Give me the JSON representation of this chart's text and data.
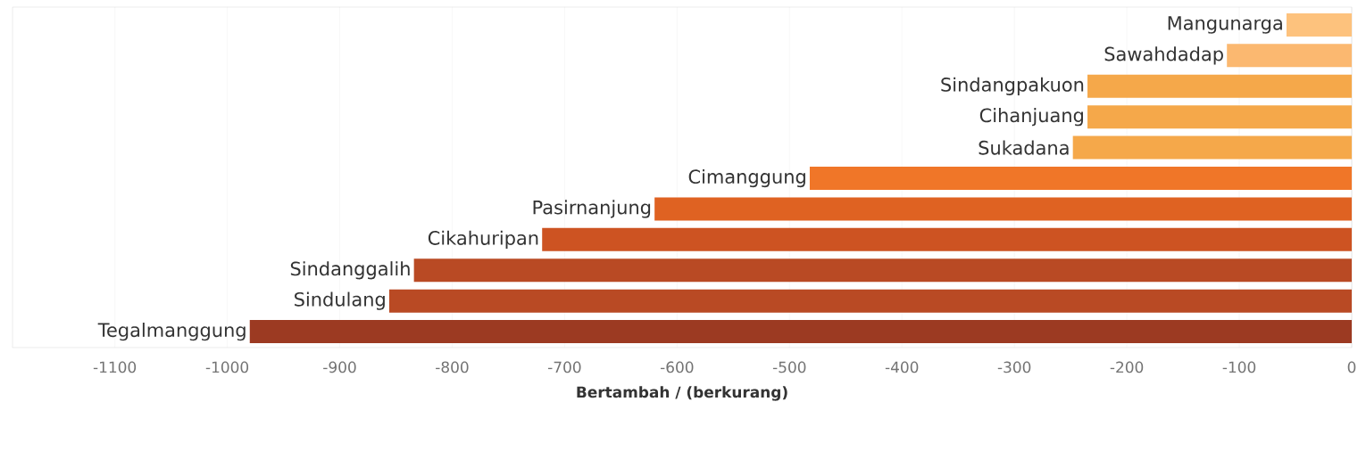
{
  "chart_data": {
    "type": "bar",
    "orientation": "horizontal",
    "xlabel": "Bertambah / (berkurang)",
    "categories": [
      "Mangunarga",
      "Sawahdadap",
      "Sindangpakuon",
      "Cihanjuang",
      "Sukadana",
      "Cimanggung",
      "Pasirnanjung",
      "Cikahuripan",
      "Sindanggalih",
      "Sindulang",
      "Tegalmanggung"
    ],
    "values": [
      -58,
      -111,
      -235,
      -235,
      -248,
      -482,
      -620,
      -720,
      -834,
      -856,
      -980
    ],
    "colors": [
      "#fdc27d",
      "#fbb870",
      "#f5a84a",
      "#f5a84a",
      "#f5a84a",
      "#f07628",
      "#df6222",
      "#cd5322",
      "#b94a24",
      "#b94a24",
      "#9c3a22"
    ],
    "xlim": [
      -1191,
      0
    ],
    "xticks": [
      -1100,
      -1000,
      -900,
      -800,
      -700,
      -600,
      -500,
      -400,
      -300,
      -200,
      -100,
      0
    ],
    "grid": "x"
  }
}
